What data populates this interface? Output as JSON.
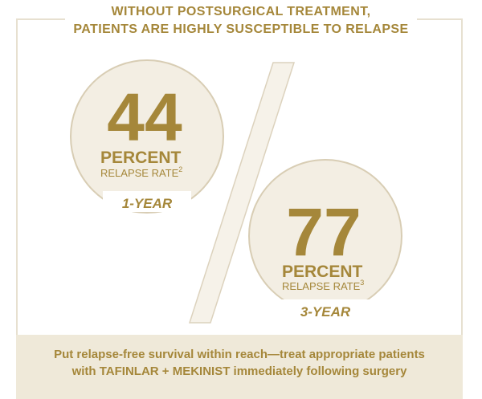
{
  "headline": {
    "line1": "WITHOUT POSTSURGICAL TREATMENT,",
    "line2": "PATIENTS ARE HIGHLY SUSCEPTIBLE TO RELAPSE"
  },
  "stats": [
    {
      "value": "44",
      "unit": "PERCENT",
      "sublabel": "RELAPSE RATE",
      "ref": "2",
      "period": "1-YEAR"
    },
    {
      "value": "77",
      "unit": "PERCENT",
      "sublabel": "RELAPSE RATE",
      "ref": "3",
      "period": "3-YEAR"
    }
  ],
  "footer": {
    "line1": "Put relapse-free survival within reach—treat appropriate patients",
    "line2": "with TAFINLAR + MEKINIST immediately following surgery"
  },
  "colors": {
    "accent": "#a5873a",
    "circle_fill": "#f3eee3",
    "circle_stroke": "#d8cdb4",
    "footer_bg": "#efe9d9"
  }
}
